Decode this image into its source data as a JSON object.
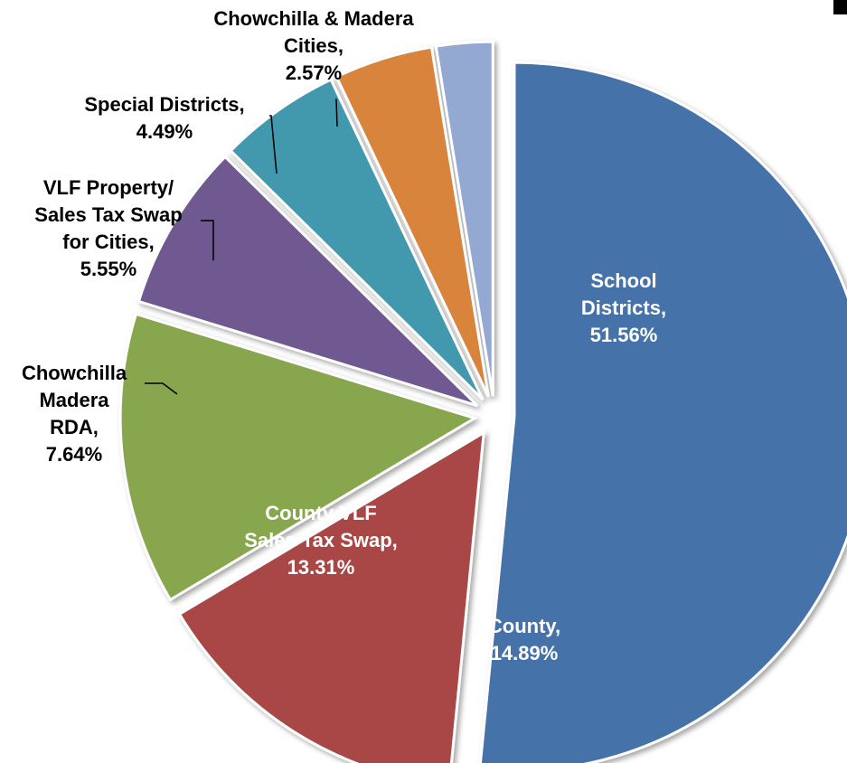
{
  "chart_data": {
    "type": "pie",
    "title": "",
    "exploded": true,
    "start": "top, clockwise",
    "slices": [
      {
        "label": "School Districts",
        "value": 51.56,
        "display": "51.56%",
        "color": "#4472a8",
        "label_color": "#ffffff",
        "label_lines": [
          "School",
          "Districts,",
          "51.56%"
        ]
      },
      {
        "label": "County",
        "value": 14.89,
        "display": "14.89%",
        "color": "#a84644",
        "label_color": "#ffffff",
        "label_lines": [
          "County,",
          "14.89%"
        ]
      },
      {
        "label": "County VLF Sales Tax Swap",
        "value": 13.31,
        "display": "13.31%",
        "color": "#88a64d",
        "label_color": "#ffffff",
        "label_lines": [
          "County VLF",
          "Sales Tax Swap,",
          "13.31%"
        ]
      },
      {
        "label": "Chowchilla Madera RDA",
        "value": 7.64,
        "display": "7.64%",
        "color": "#6f5891",
        "label_color": "#000000",
        "label_lines": [
          "Chowchilla",
          "Madera",
          "RDA,",
          "7.64%"
        ]
      },
      {
        "label": "VLF Property/ Sales Tax Swap for Cities",
        "value": 5.55,
        "display": "5.55%",
        "color": "#4298ad",
        "label_color": "#000000",
        "label_lines": [
          "VLF Property/",
          "Sales Tax Swap",
          "for Cities,",
          "5.55%"
        ]
      },
      {
        "label": "Special Districts",
        "value": 4.49,
        "display": "4.49%",
        "color": "#d9843e",
        "label_color": "#000000",
        "label_lines": [
          "Special Districts,",
          "4.49%"
        ]
      },
      {
        "label": "Chowchilla & Madera Cities",
        "value": 2.57,
        "display": "2.57%",
        "color": "#94a9d1",
        "label_color": "#000000",
        "label_lines": [
          "Chowchilla & Madera",
          "Cities,",
          "2.57%"
        ]
      }
    ]
  }
}
